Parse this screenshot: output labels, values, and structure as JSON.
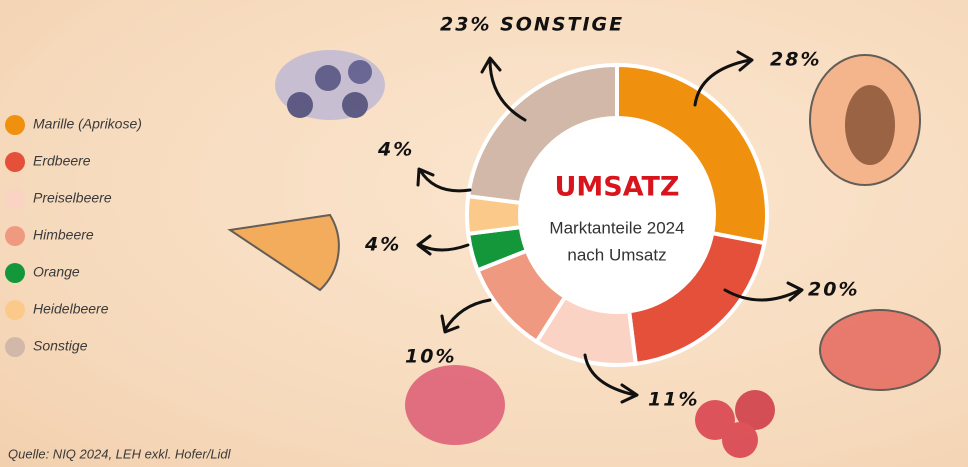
{
  "chart_data": {
    "type": "donut",
    "title": "UMSATZ",
    "subtitle_lines": [
      "Marktanteile 2024",
      "nach Umsatz"
    ],
    "source": "Quelle: NIQ 2024, LEH exkl. Hofer/Lidl",
    "categories": [
      "Marille (Aprikose)",
      "Erdbeere",
      "Preiselbeere",
      "Himbeere",
      "Orange",
      "Heidelbeere",
      "Sonstige"
    ],
    "values": [
      28,
      20,
      11,
      10,
      4,
      4,
      23
    ],
    "value_labels": [
      "28%",
      "20%",
      "11%",
      "10%",
      "4%",
      "4%",
      "23% SONSTIGE"
    ],
    "colors": [
      "#f0900f",
      "#e4503a",
      "#fad3c4",
      "#ef9a80",
      "#14973a",
      "#fbc98a",
      "#d1b8a8"
    ],
    "legend": "left"
  }
}
